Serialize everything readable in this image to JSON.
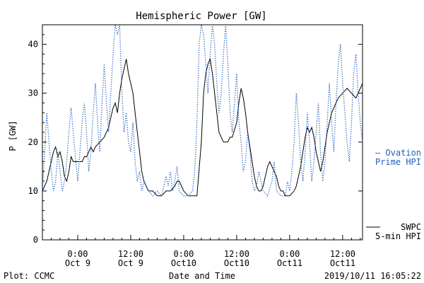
{
  "chart_data": {
    "type": "line",
    "title": "Hemispheric Power [GW]",
    "ylabel": "P [GW]",
    "xlabel": "Date and Time",
    "ylim": [
      0,
      44
    ],
    "yticks": [
      0,
      10,
      20,
      30,
      40
    ],
    "xlim": [
      -8,
      64.5
    ],
    "x_unit": "hours since Oct 9 00:00",
    "xticks": [
      {
        "x": 0,
        "line1": "0:00",
        "line2": "Oct 9"
      },
      {
        "x": 12,
        "line1": "12:00",
        "line2": "Oct 9"
      },
      {
        "x": 24,
        "line1": "0:00",
        "line2": "Oct10"
      },
      {
        "x": 36,
        "line1": "12:00",
        "line2": "Oct10"
      },
      {
        "x": 48,
        "line1": "0:00",
        "line2": "Oct11"
      },
      {
        "x": 60,
        "line1": "12:00",
        "line2": "Oct11"
      }
    ],
    "series": [
      {
        "name_line1": "SWPC",
        "name_line2": "5-min HPI",
        "style": "solid",
        "color": "#000000",
        "points": [
          [
            -8,
            10
          ],
          [
            -7.5,
            11
          ],
          [
            -7,
            12
          ],
          [
            -6.5,
            14
          ],
          [
            -6,
            16
          ],
          [
            -5.5,
            18
          ],
          [
            -5,
            19
          ],
          [
            -4.5,
            17
          ],
          [
            -4,
            18
          ],
          [
            -3.5,
            16
          ],
          [
            -3,
            13
          ],
          [
            -2.5,
            12
          ],
          [
            -2,
            14
          ],
          [
            -1.5,
            17
          ],
          [
            -1,
            16
          ],
          [
            0,
            16
          ],
          [
            1,
            16
          ],
          [
            1.5,
            17
          ],
          [
            2,
            17
          ],
          [
            2.5,
            18
          ],
          [
            3,
            19
          ],
          [
            3.5,
            18
          ],
          [
            4,
            19
          ],
          [
            5,
            20
          ],
          [
            6,
            21
          ],
          [
            6.5,
            22
          ],
          [
            7,
            23
          ],
          [
            7.5,
            25
          ],
          [
            8,
            27
          ],
          [
            8.5,
            28
          ],
          [
            9,
            26
          ],
          [
            9.5,
            30
          ],
          [
            10,
            33
          ],
          [
            10.5,
            35
          ],
          [
            11,
            37
          ],
          [
            11.5,
            34
          ],
          [
            12,
            32
          ],
          [
            12.5,
            30
          ],
          [
            13,
            26
          ],
          [
            13.5,
            22
          ],
          [
            14,
            18
          ],
          [
            14.5,
            14
          ],
          [
            15,
            12
          ],
          [
            15.5,
            11
          ],
          [
            16,
            10
          ],
          [
            17,
            10
          ],
          [
            18,
            9
          ],
          [
            19,
            9
          ],
          [
            20,
            10
          ],
          [
            21,
            10
          ],
          [
            22,
            11
          ],
          [
            22.5,
            12
          ],
          [
            23,
            12
          ],
          [
            23.5,
            11
          ],
          [
            24,
            10
          ],
          [
            25,
            9
          ],
          [
            26,
            9
          ],
          [
            27,
            9
          ],
          [
            28,
            20
          ],
          [
            28.5,
            30
          ],
          [
            29,
            34
          ],
          [
            29.5,
            36
          ],
          [
            30,
            37
          ],
          [
            30.5,
            34
          ],
          [
            31,
            30
          ],
          [
            31.5,
            26
          ],
          [
            32,
            22
          ],
          [
            32.5,
            21
          ],
          [
            33,
            20
          ],
          [
            34,
            20
          ],
          [
            34.5,
            21
          ],
          [
            35,
            21
          ],
          [
            36,
            24
          ],
          [
            36.5,
            28
          ],
          [
            37,
            31
          ],
          [
            37.5,
            29
          ],
          [
            38,
            26
          ],
          [
            38.5,
            22
          ],
          [
            39,
            19
          ],
          [
            39.5,
            16
          ],
          [
            40,
            13
          ],
          [
            40.5,
            11
          ],
          [
            41,
            10
          ],
          [
            41.5,
            10
          ],
          [
            42,
            11
          ],
          [
            42.5,
            13
          ],
          [
            43,
            15
          ],
          [
            43.5,
            16
          ],
          [
            44,
            15
          ],
          [
            44.5,
            14
          ],
          [
            45,
            13
          ],
          [
            45.5,
            11
          ],
          [
            46,
            10
          ],
          [
            46.5,
            10
          ],
          [
            47,
            9
          ],
          [
            48,
            9
          ],
          [
            49,
            10
          ],
          [
            49.5,
            11
          ],
          [
            50,
            13
          ],
          [
            50.5,
            15
          ],
          [
            51,
            18
          ],
          [
            51.5,
            21
          ],
          [
            52,
            23
          ],
          [
            52.5,
            22
          ],
          [
            53,
            23
          ],
          [
            53.5,
            21
          ],
          [
            54,
            18
          ],
          [
            54.5,
            16
          ],
          [
            55,
            14
          ],
          [
            55.5,
            16
          ],
          [
            56,
            19
          ],
          [
            56.5,
            22
          ],
          [
            57,
            24
          ],
          [
            57.5,
            26
          ],
          [
            58,
            27
          ],
          [
            58.5,
            28
          ],
          [
            59,
            29
          ],
          [
            60,
            30
          ],
          [
            61,
            31
          ],
          [
            62,
            30
          ],
          [
            63,
            29
          ],
          [
            63.5,
            30
          ],
          [
            64,
            31
          ],
          [
            64.5,
            32
          ]
        ]
      },
      {
        "name_line1": "— Ovation",
        "name_line2": "Prime HPI",
        "style": "dotted",
        "color": "#1f5fbf",
        "points": [
          [
            -8,
            10
          ],
          [
            -7.5,
            18
          ],
          [
            -7,
            26
          ],
          [
            -6.5,
            20
          ],
          [
            -6,
            14
          ],
          [
            -5.5,
            10
          ],
          [
            -5,
            12
          ],
          [
            -4.5,
            18
          ],
          [
            -4,
            14
          ],
          [
            -3.5,
            10
          ],
          [
            -3,
            12
          ],
          [
            -2.5,
            16
          ],
          [
            -2,
            22
          ],
          [
            -1.5,
            27
          ],
          [
            -1,
            22
          ],
          [
            0,
            12
          ],
          [
            0.5,
            18
          ],
          [
            1,
            24
          ],
          [
            1.5,
            28
          ],
          [
            2,
            22
          ],
          [
            2.5,
            14
          ],
          [
            3,
            18
          ],
          [
            3.5,
            26
          ],
          [
            4,
            32
          ],
          [
            4.5,
            24
          ],
          [
            5,
            18
          ],
          [
            5.5,
            28
          ],
          [
            6,
            36
          ],
          [
            6.5,
            28
          ],
          [
            7,
            22
          ],
          [
            7.5,
            30
          ],
          [
            8,
            38
          ],
          [
            8.5,
            46
          ],
          [
            9,
            42
          ],
          [
            9.5,
            46
          ],
          [
            10,
            30
          ],
          [
            10.5,
            22
          ],
          [
            11,
            26
          ],
          [
            11.5,
            20
          ],
          [
            12,
            18
          ],
          [
            12.5,
            24
          ],
          [
            13,
            16
          ],
          [
            13.5,
            12
          ],
          [
            14,
            14
          ],
          [
            14.5,
            10
          ],
          [
            15,
            12
          ],
          [
            16,
            10
          ],
          [
            17,
            9
          ],
          [
            18,
            10
          ],
          [
            19,
            9
          ],
          [
            20,
            13
          ],
          [
            20.5,
            11
          ],
          [
            21,
            14
          ],
          [
            21.5,
            10
          ],
          [
            22,
            12
          ],
          [
            22.5,
            15
          ],
          [
            23,
            10
          ],
          [
            24,
            9
          ],
          [
            25,
            9
          ],
          [
            26,
            10
          ],
          [
            26.5,
            14
          ],
          [
            27,
            24
          ],
          [
            27.5,
            40
          ],
          [
            28,
            46
          ],
          [
            28.5,
            42
          ],
          [
            29,
            36
          ],
          [
            29.5,
            30
          ],
          [
            30,
            38
          ],
          [
            30.5,
            46
          ],
          [
            31,
            40
          ],
          [
            31.5,
            32
          ],
          [
            32,
            26
          ],
          [
            32.5,
            30
          ],
          [
            33,
            38
          ],
          [
            33.5,
            46
          ],
          [
            34,
            36
          ],
          [
            34.5,
            26
          ],
          [
            35,
            22
          ],
          [
            35.5,
            28
          ],
          [
            36,
            34
          ],
          [
            36.5,
            24
          ],
          [
            37,
            20
          ],
          [
            37.5,
            14
          ],
          [
            38,
            16
          ],
          [
            38.5,
            22
          ],
          [
            39,
            18
          ],
          [
            39.5,
            12
          ],
          [
            40,
            10
          ],
          [
            40.5,
            11
          ],
          [
            41,
            14
          ],
          [
            41.5,
            12
          ],
          [
            42,
            10
          ],
          [
            43,
            9
          ],
          [
            44,
            12
          ],
          [
            44.5,
            16
          ],
          [
            45,
            10
          ],
          [
            46,
            9
          ],
          [
            47,
            9
          ],
          [
            47.5,
            12
          ],
          [
            48,
            10
          ],
          [
            48.5,
            14
          ],
          [
            49,
            20
          ],
          [
            49.5,
            30
          ],
          [
            50,
            24
          ],
          [
            50.5,
            16
          ],
          [
            51,
            12
          ],
          [
            51.5,
            18
          ],
          [
            52,
            26
          ],
          [
            52.5,
            20
          ],
          [
            53,
            12
          ],
          [
            53.5,
            16
          ],
          [
            54,
            22
          ],
          [
            54.5,
            28
          ],
          [
            55,
            18
          ],
          [
            55.5,
            12
          ],
          [
            56,
            16
          ],
          [
            56.5,
            24
          ],
          [
            57,
            32
          ],
          [
            57.5,
            24
          ],
          [
            58,
            18
          ],
          [
            58.5,
            28
          ],
          [
            59,
            36
          ],
          [
            59.5,
            40
          ],
          [
            60,
            32
          ],
          [
            60.5,
            26
          ],
          [
            61,
            20
          ],
          [
            61.5,
            16
          ],
          [
            62,
            24
          ],
          [
            62.5,
            34
          ],
          [
            63,
            38
          ],
          [
            63.5,
            30
          ],
          [
            64,
            24
          ],
          [
            64.5,
            20
          ]
        ]
      }
    ]
  },
  "footer": {
    "left": "Plot: CCMC",
    "right": "2019/10/11 16:05:22"
  }
}
